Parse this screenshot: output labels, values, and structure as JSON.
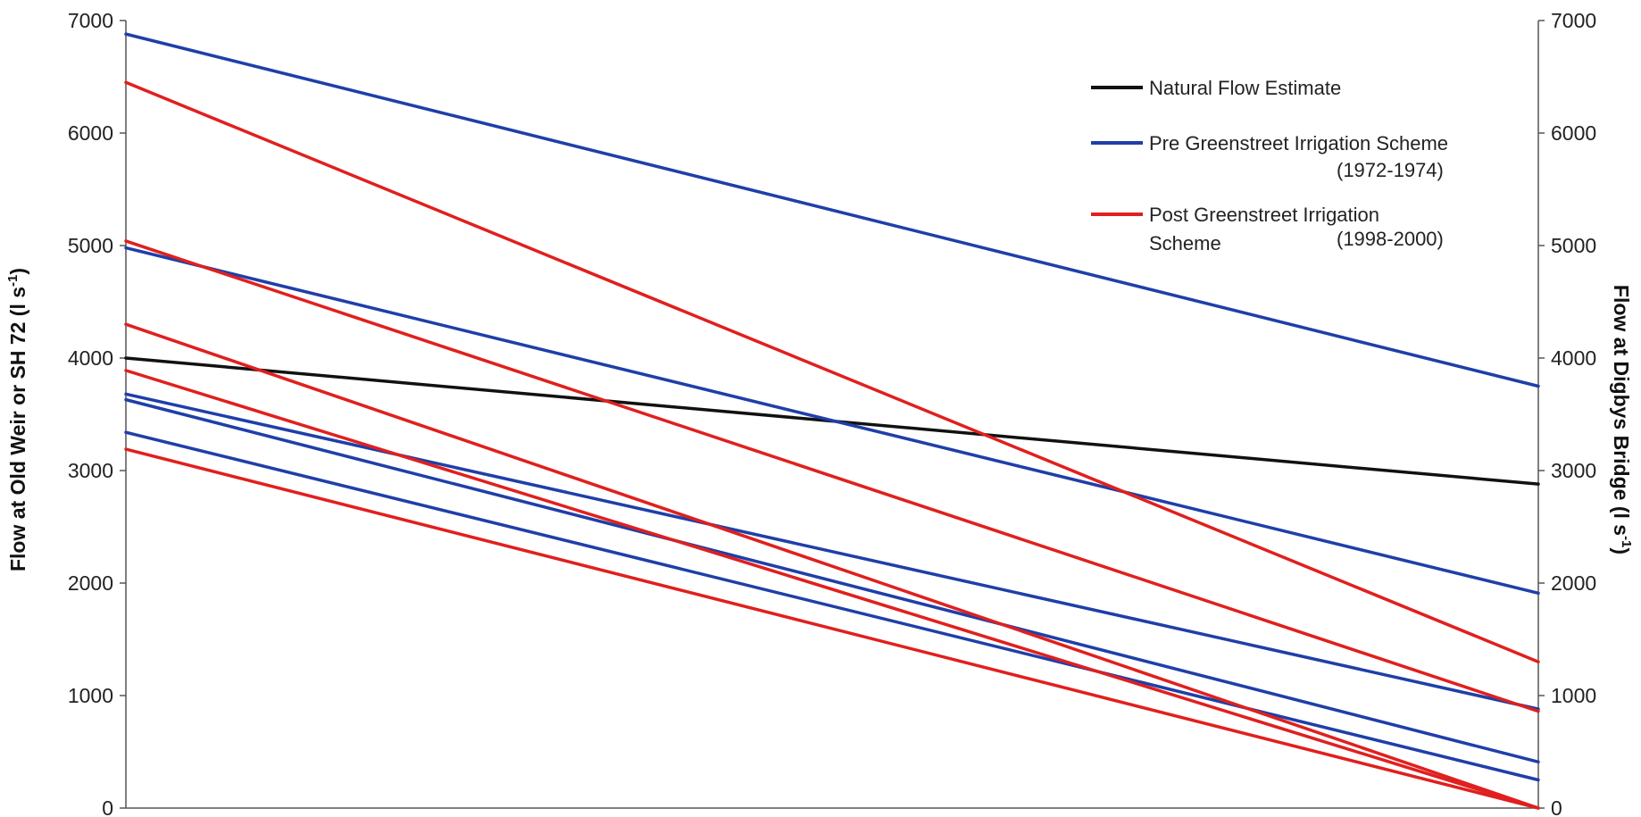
{
  "chart_data": {
    "type": "line",
    "x": [
      0,
      1
    ],
    "xlim": [
      0,
      1
    ],
    "ylim": [
      0,
      7000
    ],
    "y2lim": [
      0,
      7000
    ],
    "yticks": [
      0,
      1000,
      2000,
      3000,
      4000,
      5000,
      6000,
      7000
    ],
    "y2ticks": [
      0,
      1000,
      2000,
      3000,
      4000,
      5000,
      6000,
      7000
    ],
    "ylabel": "Flow at Old Weir or SH 72 (l s",
    "ylabel_sup": "-1",
    "ylabel_end": ")",
    "y2label": "Flow at Digbys Bridge (l s",
    "y2label_sup": "-1",
    "y2label_end": ")",
    "grid": false,
    "legend_position": "top-right",
    "legend": [
      {
        "label": "Natural Flow Estimate",
        "color": "#111111"
      },
      {
        "label": "Pre Greenstreet Irrigation Scheme",
        "label_line2": "(1972-1974)",
        "color": "#1f3fa8"
      },
      {
        "label": "Post Greenstreet Irrigation",
        "label_line2a": "Scheme",
        "label_line2b": "(1998-2000)",
        "color": "#e0201e"
      }
    ],
    "series": [
      {
        "group": "Natural Flow Estimate",
        "color": "#111111",
        "values": [
          4000,
          2880
        ]
      },
      {
        "group": "Pre Greenstreet Irrigation Scheme",
        "color": "#1f3fa8",
        "values": [
          6880,
          3750
        ]
      },
      {
        "group": "Pre Greenstreet Irrigation Scheme",
        "color": "#1f3fa8",
        "values": [
          4980,
          1910
        ]
      },
      {
        "group": "Pre Greenstreet Irrigation Scheme",
        "color": "#1f3fa8",
        "values": [
          3680,
          880
        ]
      },
      {
        "group": "Pre Greenstreet Irrigation Scheme",
        "color": "#1f3fa8",
        "values": [
          3630,
          410
        ]
      },
      {
        "group": "Pre Greenstreet Irrigation Scheme",
        "color": "#1f3fa8",
        "values": [
          3340,
          250
        ]
      },
      {
        "group": "Post Greenstreet Irrigation Scheme",
        "color": "#e0201e",
        "values": [
          6450,
          1300
        ]
      },
      {
        "group": "Post Greenstreet Irrigation Scheme",
        "color": "#e0201e",
        "values": [
          5040,
          860
        ]
      },
      {
        "group": "Post Greenstreet Irrigation Scheme",
        "color": "#e0201e",
        "values": [
          4300,
          0
        ]
      },
      {
        "group": "Post Greenstreet Irrigation Scheme",
        "color": "#e0201e",
        "values": [
          3890,
          0
        ]
      },
      {
        "group": "Post Greenstreet Irrigation Scheme",
        "color": "#e0201e",
        "values": [
          3190,
          0
        ]
      }
    ]
  }
}
